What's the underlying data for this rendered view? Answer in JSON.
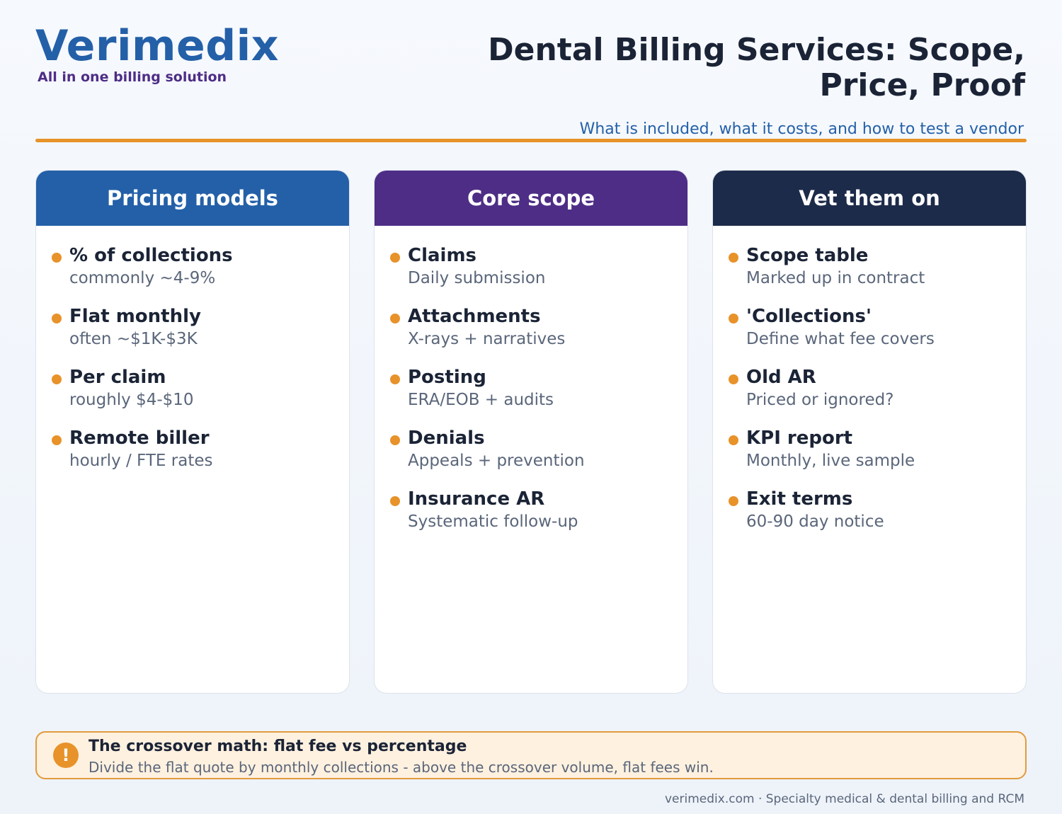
{
  "brand": {
    "name": "Verimedix",
    "tagline": "All in one billing solution"
  },
  "header": {
    "title": "Dental Billing Services: Scope, Price, Proof",
    "subtitle": "What is included, what it costs, and how to test a vendor"
  },
  "colors": {
    "brand_blue": "#2460a8",
    "brand_purple": "#4e2d86",
    "navy": "#1d2b4a",
    "accent_orange": "#e8922a"
  },
  "cards": [
    {
      "title": "Pricing models",
      "items": [
        {
          "label": "% of collections",
          "desc": "commonly ~4-9%"
        },
        {
          "label": "Flat monthly",
          "desc": "often ~$1K-$3K"
        },
        {
          "label": "Per claim",
          "desc": "roughly $4-$10"
        },
        {
          "label": "Remote biller",
          "desc": "hourly / FTE rates"
        }
      ]
    },
    {
      "title": "Core scope",
      "items": [
        {
          "label": "Claims",
          "desc": "Daily submission"
        },
        {
          "label": "Attachments",
          "desc": "X-rays + narratives"
        },
        {
          "label": "Posting",
          "desc": "ERA/EOB + audits"
        },
        {
          "label": "Denials",
          "desc": "Appeals + prevention"
        },
        {
          "label": "Insurance AR",
          "desc": "Systematic follow-up"
        }
      ]
    },
    {
      "title": "Vet them on",
      "items": [
        {
          "label": "Scope table",
          "desc": "Marked up in contract"
        },
        {
          "label": "'Collections'",
          "desc": "Define what fee covers"
        },
        {
          "label": "Old AR",
          "desc": "Priced or ignored?"
        },
        {
          "label": "KPI report",
          "desc": "Monthly, live sample"
        },
        {
          "label": "Exit terms",
          "desc": "60-90 day notice"
        }
      ]
    }
  ],
  "callout": {
    "icon": "exclamation-icon",
    "icon_glyph": "!",
    "title": "The crossover math: flat fee vs percentage",
    "text": "Divide the flat quote by monthly collections - above the crossover volume, flat fees win."
  },
  "footer": {
    "text": "verimedix.com · Specialty medical & dental billing and RCM"
  }
}
